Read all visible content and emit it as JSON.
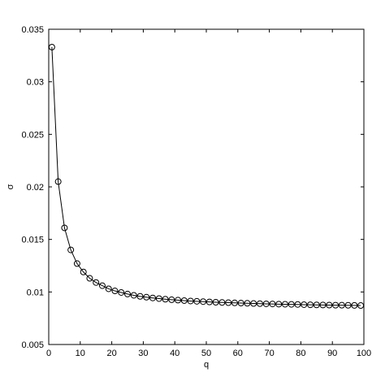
{
  "chart_data": {
    "type": "line",
    "title": "",
    "xlabel": "q",
    "ylabel": "σ",
    "xlim": [
      0,
      100
    ],
    "ylim": [
      0.005,
      0.035
    ],
    "grid": false,
    "x_tick_labels": [
      "0",
      "10",
      "20",
      "30",
      "40",
      "50",
      "60",
      "70",
      "80",
      "90",
      "100"
    ],
    "y_tick_labels": [
      "0.005",
      "0.01",
      "0.015",
      "0.02",
      "0.025",
      "0.03",
      "0.035"
    ],
    "x_ticks": [
      0,
      10,
      20,
      30,
      40,
      50,
      60,
      70,
      80,
      90,
      100
    ],
    "y_ticks": [
      0.005,
      0.01,
      0.015,
      0.02,
      0.025,
      0.03,
      0.035
    ],
    "series": [
      {
        "marker": "circle",
        "line_color": "#000000",
        "x": [
          1,
          3,
          5,
          7,
          9,
          11,
          13,
          15,
          17,
          19,
          21,
          23,
          25,
          27,
          29,
          31,
          33,
          35,
          37,
          39,
          41,
          43,
          45,
          47,
          49,
          51,
          53,
          55,
          57,
          59,
          61,
          63,
          65,
          67,
          69,
          71,
          73,
          75,
          77,
          79,
          81,
          83,
          85,
          87,
          89,
          91,
          93,
          95,
          97,
          99
        ],
        "y": [
          0.0333,
          0.0205,
          0.0161,
          0.014,
          0.0127,
          0.0119,
          0.0113,
          0.0109,
          0.0106,
          0.0103,
          0.0101,
          0.00995,
          0.0098,
          0.00968,
          0.00958,
          0.0095,
          0.00943,
          0.00937,
          0.00931,
          0.00926,
          0.00922,
          0.00918,
          0.00914,
          0.00911,
          0.00908,
          0.00905,
          0.00902,
          0.009,
          0.00898,
          0.00896,
          0.00894,
          0.00892,
          0.0089,
          0.00889,
          0.00887,
          0.00886,
          0.00884,
          0.00883,
          0.00882,
          0.00881,
          0.00879,
          0.00878,
          0.00877,
          0.00876,
          0.00875,
          0.00874,
          0.00874,
          0.00873,
          0.00872,
          0.00871
        ]
      }
    ]
  }
}
